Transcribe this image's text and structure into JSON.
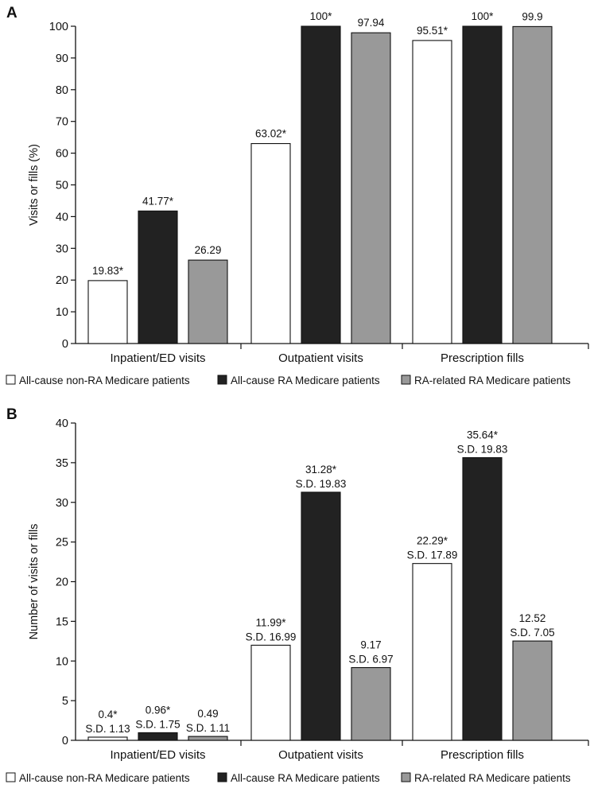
{
  "chart_data": [
    {
      "type": "bar",
      "panel_label": "A",
      "title": "",
      "xlabel": "",
      "ylabel": "Visits or fills (%)",
      "ylim": [
        0,
        100
      ],
      "yticks": [
        0,
        10,
        20,
        30,
        40,
        50,
        60,
        70,
        80,
        90,
        100
      ],
      "categories": [
        "Inpatient/ED visits",
        "Outpatient visits",
        "Prescription fills"
      ],
      "series": [
        {
          "name": "All-cause non-RA Medicare patients",
          "color": "#ffffff",
          "values": [
            19.83,
            63.02,
            95.51
          ],
          "labels": [
            "19.83*",
            "63.02*",
            "95.51*"
          ]
        },
        {
          "name": "All-cause RA Medicare patients",
          "color": "#222222",
          "values": [
            41.77,
            100,
            100
          ],
          "labels": [
            "41.77*",
            "100*",
            "100*"
          ]
        },
        {
          "name": "RA-related RA Medicare patients",
          "color": "#999999",
          "values": [
            26.29,
            97.94,
            99.9
          ],
          "labels": [
            "26.29",
            "97.94",
            "99.9"
          ]
        }
      ],
      "legend": "bottom"
    },
    {
      "type": "bar",
      "panel_label": "B",
      "title": "",
      "xlabel": "",
      "ylabel": "Number of visits or fills",
      "ylim": [
        0,
        40
      ],
      "yticks": [
        0,
        5,
        10,
        15,
        20,
        25,
        30,
        35,
        40
      ],
      "categories": [
        "Inpatient/ED visits",
        "Outpatient visits",
        "Prescription fills"
      ],
      "series": [
        {
          "name": "All-cause non-RA Medicare patients",
          "color": "#ffffff",
          "values": [
            0.4,
            11.99,
            22.29
          ],
          "labels": [
            "0.4*",
            "11.99*",
            "22.29*"
          ],
          "sd_labels": [
            "S.D. 1.13",
            "S.D. 16.99",
            "S.D. 17.89"
          ]
        },
        {
          "name": "All-cause RA Medicare patients",
          "color": "#222222",
          "values": [
            0.96,
            31.28,
            35.64
          ],
          "labels": [
            "0.96*",
            "31.28*",
            "35.64*"
          ],
          "sd_labels": [
            "S.D. 1.75",
            "S.D. 19.83",
            "S.D. 19.83"
          ]
        },
        {
          "name": "RA-related RA Medicare patients",
          "color": "#999999",
          "values": [
            0.49,
            9.17,
            12.52
          ],
          "labels": [
            "0.49",
            "9.17",
            "12.52"
          ],
          "sd_labels": [
            "S.D. 1.11",
            "S.D. 6.97",
            "S.D. 7.05"
          ]
        }
      ],
      "legend": "bottom"
    }
  ]
}
